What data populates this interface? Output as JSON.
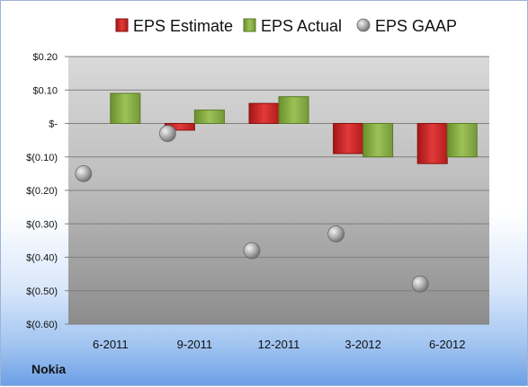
{
  "company": "Nokia",
  "chart_data": {
    "type": "bar",
    "categories": [
      "6-2011",
      "9-2011",
      "12-2011",
      "3-2012",
      "6-2012"
    ],
    "series": [
      {
        "name": "EPS Estimate",
        "kind": "bar",
        "color": "#d62b2b",
        "values": [
          null,
          -0.02,
          0.06,
          -0.09,
          -0.12
        ]
      },
      {
        "name": "EPS Actual",
        "kind": "bar",
        "color": "#8db545",
        "values": [
          0.09,
          0.04,
          0.08,
          -0.1,
          -0.1
        ]
      },
      {
        "name": "EPS GAAP",
        "kind": "marker",
        "color": "#a9a9a9",
        "values": [
          -0.15,
          -0.03,
          -0.38,
          -0.33,
          -0.48
        ]
      }
    ],
    "y_ticks": [
      0.2,
      0.1,
      0,
      -0.1,
      -0.2,
      -0.3,
      -0.4,
      -0.5,
      -0.6
    ],
    "y_tick_labels": [
      "$0.20",
      "$0.10",
      "$-",
      "$(0.10)",
      "$(0.20)",
      "$(0.30)",
      "$(0.40)",
      "$(0.50)",
      "$(0.60)"
    ],
    "ylim": [
      -0.6,
      0.2
    ],
    "grid": true,
    "legend_position": "top"
  }
}
